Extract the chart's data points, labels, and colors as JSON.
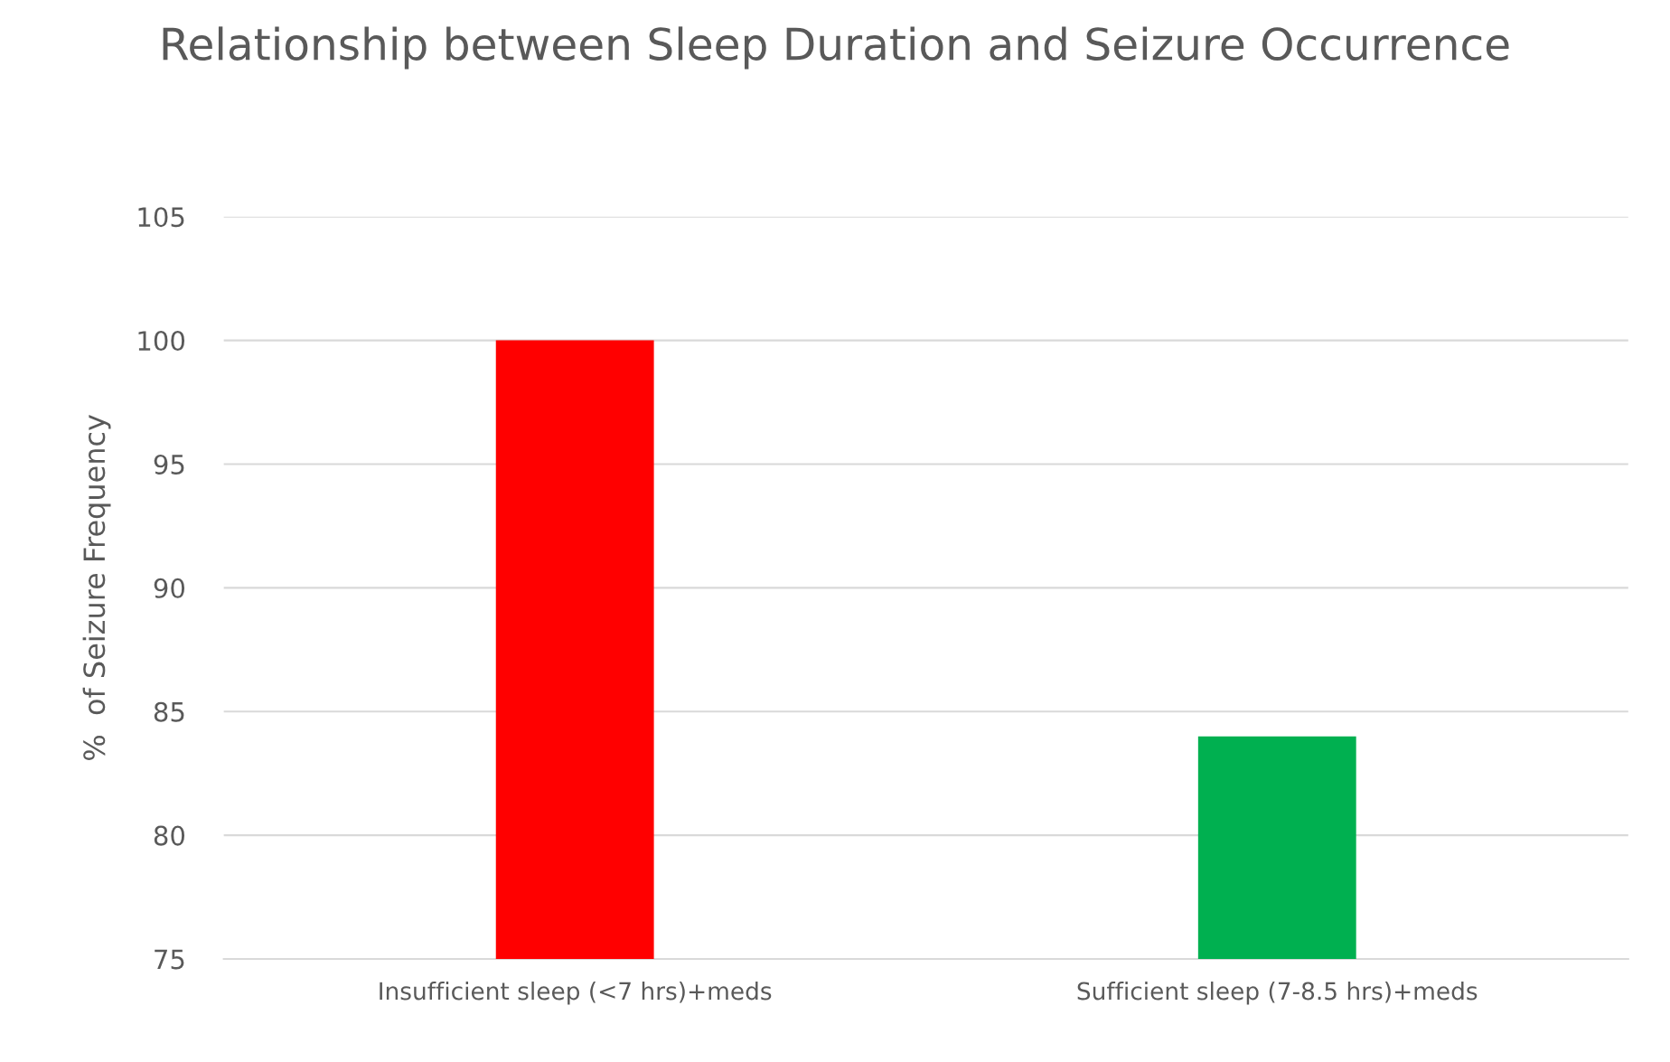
{
  "chart_data": {
    "type": "bar",
    "title": "Relationship between Sleep Duration and Seizure Occurrence",
    "ylabel": "%  of Seizure Frequency",
    "categories": [
      "Insufficient sleep (<7 hrs)+meds",
      "Sufficient sleep (7-8.5 hrs)+meds"
    ],
    "values": [
      100,
      84
    ],
    "colors": [
      "#ff0000",
      "#00b050"
    ],
    "ylim": [
      75,
      105
    ],
    "yticks": [
      75,
      80,
      85,
      90,
      95,
      100,
      105
    ],
    "grid": "y",
    "legend": false
  }
}
